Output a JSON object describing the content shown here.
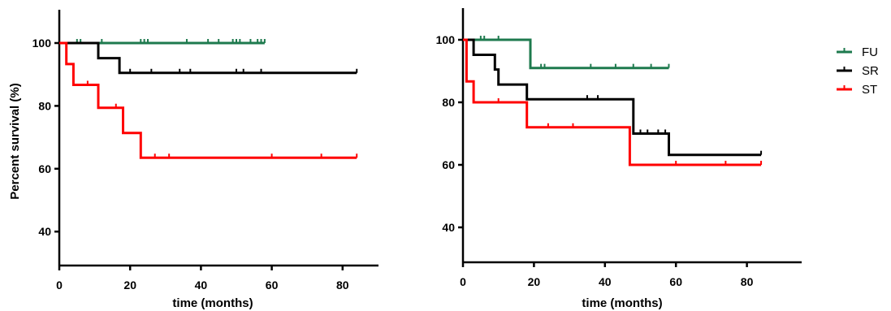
{
  "chart_data": [
    {
      "type": "line",
      "step": true,
      "title": "",
      "xlabel": "time (months)",
      "ylabel": "Percent survival (%)",
      "xlim": [
        0,
        90
      ],
      "ylim": [
        30,
        110
      ],
      "x_ticks": [
        "0",
        "20",
        "40",
        "60",
        "80"
      ],
      "y_ticks": [
        "40",
        "60",
        "80",
        "100"
      ],
      "series": [
        {
          "color": "#1e7a4e",
          "x": [
            0,
            58
          ],
          "y": [
            100,
            100
          ],
          "censored_x": [
            5,
            6,
            12,
            23,
            24,
            25,
            36,
            42,
            45,
            49,
            50,
            51,
            54,
            56,
            57,
            58
          ]
        },
        {
          "color": "#000000",
          "x": [
            0,
            11,
            11,
            17,
            17,
            84
          ],
          "y": [
            100,
            100,
            95.2,
            95.2,
            90.5,
            90.5
          ],
          "censored_x": [
            20,
            26,
            34,
            37,
            50,
            52,
            57,
            84
          ]
        },
        {
          "color": "#ff0000",
          "x": [
            0,
            2,
            2,
            4,
            4,
            11,
            11,
            18,
            18,
            23,
            23,
            84
          ],
          "y": [
            100,
            100,
            93.3,
            93.3,
            86.7,
            86.7,
            79.4,
            79.4,
            71.4,
            71.4,
            63.5,
            63.5
          ],
          "censored_x": [
            8,
            16,
            27,
            31,
            60,
            74,
            84
          ]
        }
      ]
    },
    {
      "type": "line",
      "step": true,
      "title": "",
      "xlabel": "time (months)",
      "ylabel": "",
      "xlim": [
        0,
        90
      ],
      "ylim": [
        30,
        110
      ],
      "x_ticks": [
        "0",
        "20",
        "40",
        "60",
        "80"
      ],
      "y_ticks": [
        "40",
        "60",
        "80",
        "100"
      ],
      "series": [
        {
          "color": "#1e7a4e",
          "x": [
            0,
            19,
            19,
            58
          ],
          "y": [
            100,
            100,
            91,
            91
          ],
          "censored_x": [
            5,
            6,
            10,
            22,
            23,
            36,
            43,
            48,
            53,
            58
          ]
        },
        {
          "color": "#000000",
          "x": [
            0,
            3,
            3,
            9,
            9,
            10,
            10,
            18,
            18,
            48,
            48,
            58,
            58,
            84
          ],
          "y": [
            100,
            100,
            95.2,
            95.2,
            90.5,
            90.5,
            85.7,
            85.7,
            81,
            81,
            70,
            70,
            63.2,
            63.2
          ],
          "censored_x": [
            35,
            38,
            50,
            52,
            55,
            57,
            84
          ]
        },
        {
          "color": "#ff0000",
          "x": [
            0,
            1,
            1,
            3,
            3,
            18,
            18,
            47,
            47,
            84
          ],
          "y": [
            100,
            100,
            86.7,
            86.7,
            80,
            80,
            72,
            72,
            60,
            60
          ],
          "censored_x": [
            10,
            24,
            31,
            60,
            74,
            84
          ]
        }
      ],
      "legend_position": "right",
      "legend": [
        {
          "label": "FU",
          "color": "#1e7a4e"
        },
        {
          "label": "SR",
          "color": "#000000"
        },
        {
          "label": "ST",
          "color": "#ff0000"
        }
      ]
    }
  ]
}
